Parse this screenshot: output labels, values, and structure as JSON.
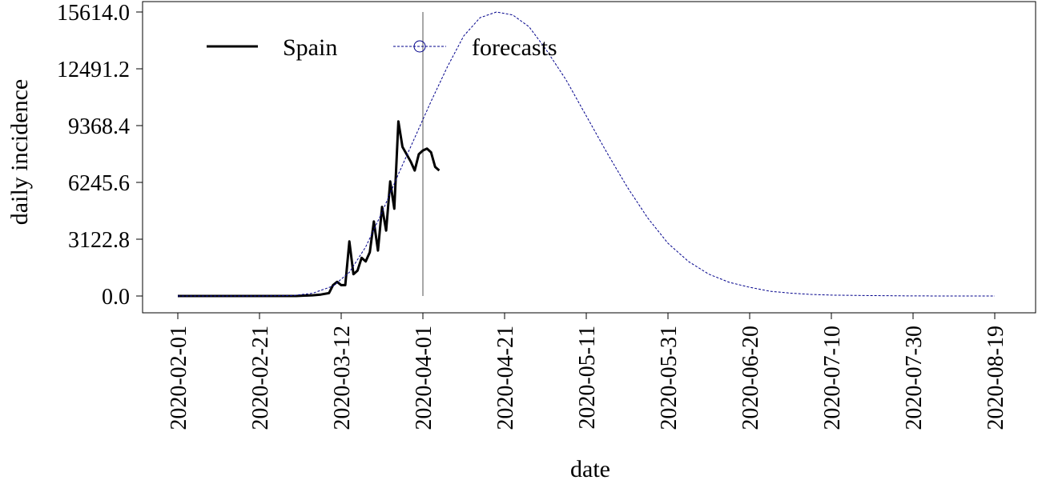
{
  "chart_data": {
    "type": "line",
    "xlabel": "date",
    "ylabel": "daily incidence",
    "x_ticks": [
      "2020-02-01",
      "2020-02-21",
      "2020-03-12",
      "2020-04-01",
      "2020-04-21",
      "2020-05-11",
      "2020-05-31",
      "2020-06-20",
      "2020-07-10",
      "2020-07-30",
      "2020-08-19"
    ],
    "y_ticks": [
      "0.0",
      "3122.8",
      "6245.6",
      "9368.4",
      "12491.2",
      "15614.0"
    ],
    "ylim": [
      0,
      15614.0
    ],
    "xlim": [
      "2020-02-01",
      "2020-08-20"
    ],
    "vertical_line_date": "2020-04-01",
    "legend": {
      "position": "top-left",
      "entries": [
        "Spain",
        "forecasts"
      ]
    },
    "series": [
      {
        "name": "Spain",
        "style": "solid",
        "color": "#000000",
        "points": [
          [
            "2020-02-01",
            0
          ],
          [
            "2020-02-10",
            0
          ],
          [
            "2020-02-20",
            0
          ],
          [
            "2020-03-01",
            0
          ],
          [
            "2020-03-03",
            20
          ],
          [
            "2020-03-05",
            40
          ],
          [
            "2020-03-07",
            80
          ],
          [
            "2020-03-09",
            160
          ],
          [
            "2020-03-10",
            600
          ],
          [
            "2020-03-11",
            780
          ],
          [
            "2020-03-12",
            600
          ],
          [
            "2020-03-13",
            600
          ],
          [
            "2020-03-14",
            3000
          ],
          [
            "2020-03-15",
            1200
          ],
          [
            "2020-03-16",
            1400
          ],
          [
            "2020-03-17",
            2100
          ],
          [
            "2020-03-18",
            1900
          ],
          [
            "2020-03-19",
            2400
          ],
          [
            "2020-03-20",
            4100
          ],
          [
            "2020-03-21",
            2500
          ],
          [
            "2020-03-22",
            4900
          ],
          [
            "2020-03-23",
            3600
          ],
          [
            "2020-03-24",
            6300
          ],
          [
            "2020-03-25",
            4800
          ],
          [
            "2020-03-26",
            9600
          ],
          [
            "2020-03-27",
            8200
          ],
          [
            "2020-03-28",
            7800
          ],
          [
            "2020-03-29",
            7400
          ],
          [
            "2020-03-30",
            6900
          ],
          [
            "2020-03-31",
            7800
          ],
          [
            "2020-04-01",
            8000
          ],
          [
            "2020-04-02",
            8100
          ],
          [
            "2020-04-03",
            7900
          ],
          [
            "2020-04-04",
            7100
          ],
          [
            "2020-04-05",
            6900
          ]
        ]
      },
      {
        "name": "forecasts",
        "style": "dashed",
        "color": "#00008b",
        "points": [
          [
            "2020-02-01",
            0
          ],
          [
            "2020-02-21",
            0
          ],
          [
            "2020-02-29",
            20
          ],
          [
            "2020-03-05",
            150
          ],
          [
            "2020-03-10",
            550
          ],
          [
            "2020-03-14",
            1300
          ],
          [
            "2020-03-18",
            2700
          ],
          [
            "2020-03-22",
            4600
          ],
          [
            "2020-03-26",
            6700
          ],
          [
            "2020-03-30",
            8700
          ],
          [
            "2020-04-03",
            10700
          ],
          [
            "2020-04-07",
            12600
          ],
          [
            "2020-04-11",
            14300
          ],
          [
            "2020-04-15",
            15300
          ],
          [
            "2020-04-19",
            15614
          ],
          [
            "2020-04-23",
            15450
          ],
          [
            "2020-04-27",
            14800
          ],
          [
            "2020-05-01",
            13600
          ],
          [
            "2020-05-06",
            11900
          ],
          [
            "2020-05-11",
            9900
          ],
          [
            "2020-05-16",
            7900
          ],
          [
            "2020-05-21",
            6000
          ],
          [
            "2020-05-26",
            4300
          ],
          [
            "2020-05-31",
            2900
          ],
          [
            "2020-06-05",
            1900
          ],
          [
            "2020-06-10",
            1200
          ],
          [
            "2020-06-15",
            750
          ],
          [
            "2020-06-20",
            480
          ],
          [
            "2020-06-25",
            260
          ],
          [
            "2020-06-30",
            160
          ],
          [
            "2020-07-05",
            90
          ],
          [
            "2020-07-10",
            50
          ],
          [
            "2020-07-20",
            20
          ],
          [
            "2020-07-30",
            5
          ],
          [
            "2020-08-10",
            0
          ],
          [
            "2020-08-19",
            0
          ]
        ]
      }
    ]
  }
}
